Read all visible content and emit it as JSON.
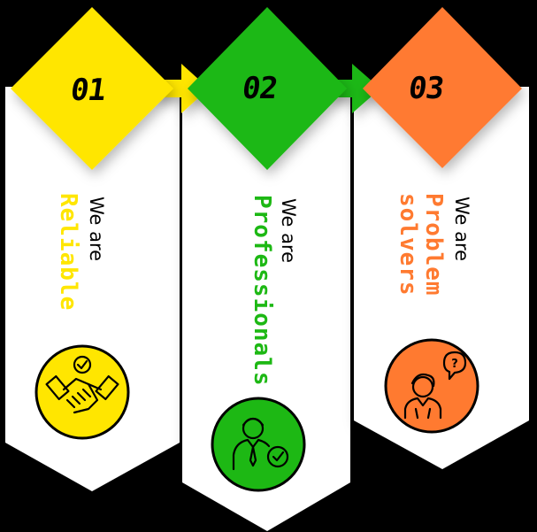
{
  "steps": [
    {
      "number": "01",
      "intro": "We are",
      "keyword": "Reliable",
      "color": "#FFE600",
      "icon": "handshake-check-icon"
    },
    {
      "number": "02",
      "intro": "We are",
      "keyword": "Professionals",
      "color": "#1DB814",
      "icon": "businessman-badge-icon"
    },
    {
      "number": "03",
      "intro": "We are",
      "keyword_lines": [
        "Problem",
        "solvers"
      ],
      "color": "#FF7A30",
      "icon": "person-question-icon"
    }
  ]
}
